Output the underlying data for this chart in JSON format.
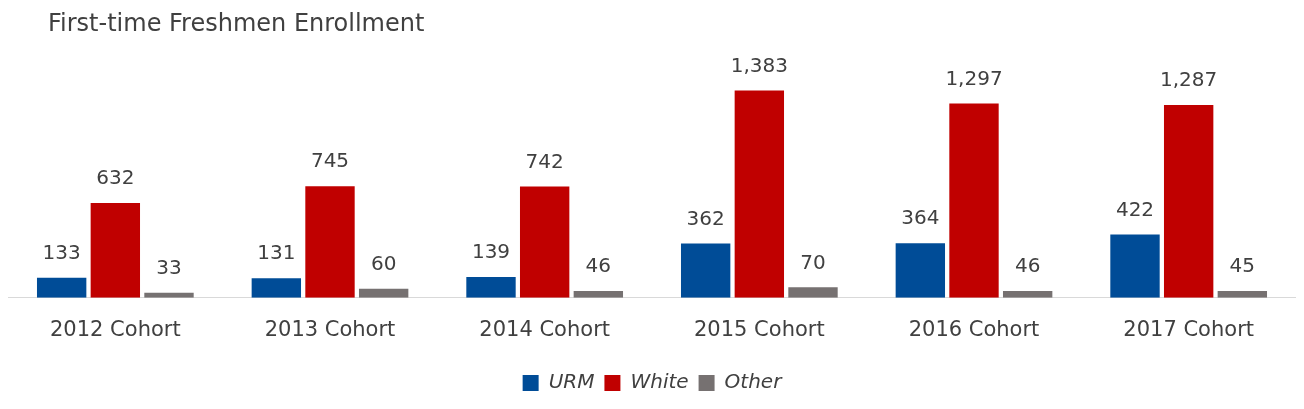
{
  "chart_data": {
    "type": "bar",
    "title": "First-time Freshmen Enrollment",
    "categories": [
      "2012 Cohort",
      "2013 Cohort",
      "2014 Cohort",
      "2015 Cohort",
      "2016 Cohort",
      "2017 Cohort"
    ],
    "series": [
      {
        "name": "URM",
        "color": "#004c97",
        "values": [
          133,
          131,
          139,
          362,
          364,
          422
        ],
        "value_labels": [
          "133",
          "131",
          "139",
          "362",
          "364",
          "422"
        ]
      },
      {
        "name": "White",
        "color": "#c00000",
        "values": [
          632,
          745,
          742,
          1383,
          1297,
          1287
        ],
        "value_labels": [
          "632",
          "745",
          "742",
          "1,383",
          "1,297",
          "1,287"
        ]
      },
      {
        "name": "Other",
        "color": "#767171",
        "values": [
          33,
          60,
          46,
          70,
          46,
          45
        ],
        "value_labels": [
          "33",
          "60",
          "46",
          "70",
          "46",
          "45"
        ]
      }
    ],
    "grid": false,
    "legend": "bottom"
  }
}
